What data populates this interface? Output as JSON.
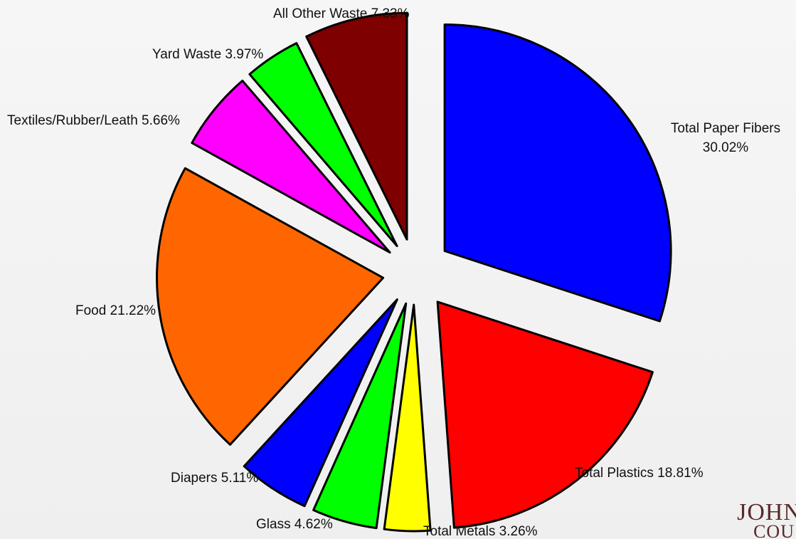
{
  "chart_data": {
    "type": "pie",
    "title": "",
    "slices": [
      {
        "label": "Total Paper Fibers",
        "value_text": "30.02%",
        "value": 30.02,
        "color": "#0000FF"
      },
      {
        "label": "Total Plastics",
        "value_text": "18.81%",
        "value": 18.81,
        "color": "#FF0000"
      },
      {
        "label": "Total Metals",
        "value_text": "3.26%",
        "value": 3.26,
        "color": "#FFFF00"
      },
      {
        "label": "Glass",
        "value_text": "4.62%",
        "value": 4.62,
        "color": "#00FF00"
      },
      {
        "label": "Diapers",
        "value_text": "5.11%",
        "value": 5.11,
        "color": "#0000FF"
      },
      {
        "label": "Food",
        "value_text": "21.22%",
        "value": 21.22,
        "color": "#FF6600"
      },
      {
        "label": "Textiles/Rubber/Leath",
        "value_text": "5.66%",
        "value": 5.66,
        "color": "#FF00FF"
      },
      {
        "label": "Yard Waste",
        "value_text": "3.97%",
        "value": 3.97,
        "color": "#00FF00"
      },
      {
        "label": "All Other Waste",
        "value_text": "7.33%",
        "value": 7.33,
        "color": "#7F0000"
      }
    ],
    "start_angle": "top",
    "direction": "clockwise",
    "exploded": true
  },
  "logo": {
    "line1": "JOHN",
    "line2": "COU"
  }
}
